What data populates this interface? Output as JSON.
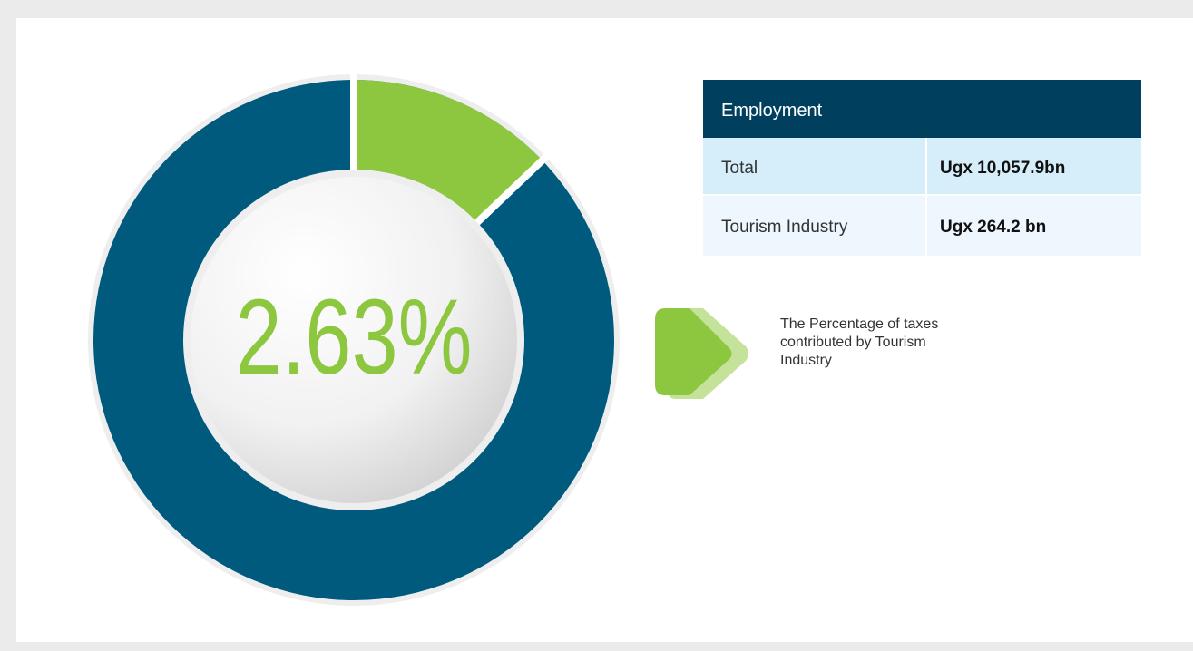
{
  "headline": "2.63%",
  "caption": [
    "The Percentage of taxes",
    "contributed by Tourism",
    "Industry"
  ],
  "table": {
    "title": "Employment",
    "rows": [
      [
        "Total",
        "Ugx 10,057.9bn"
      ],
      [
        "Tourism Industry",
        "Ugx 264.2 bn"
      ]
    ]
  }
}
